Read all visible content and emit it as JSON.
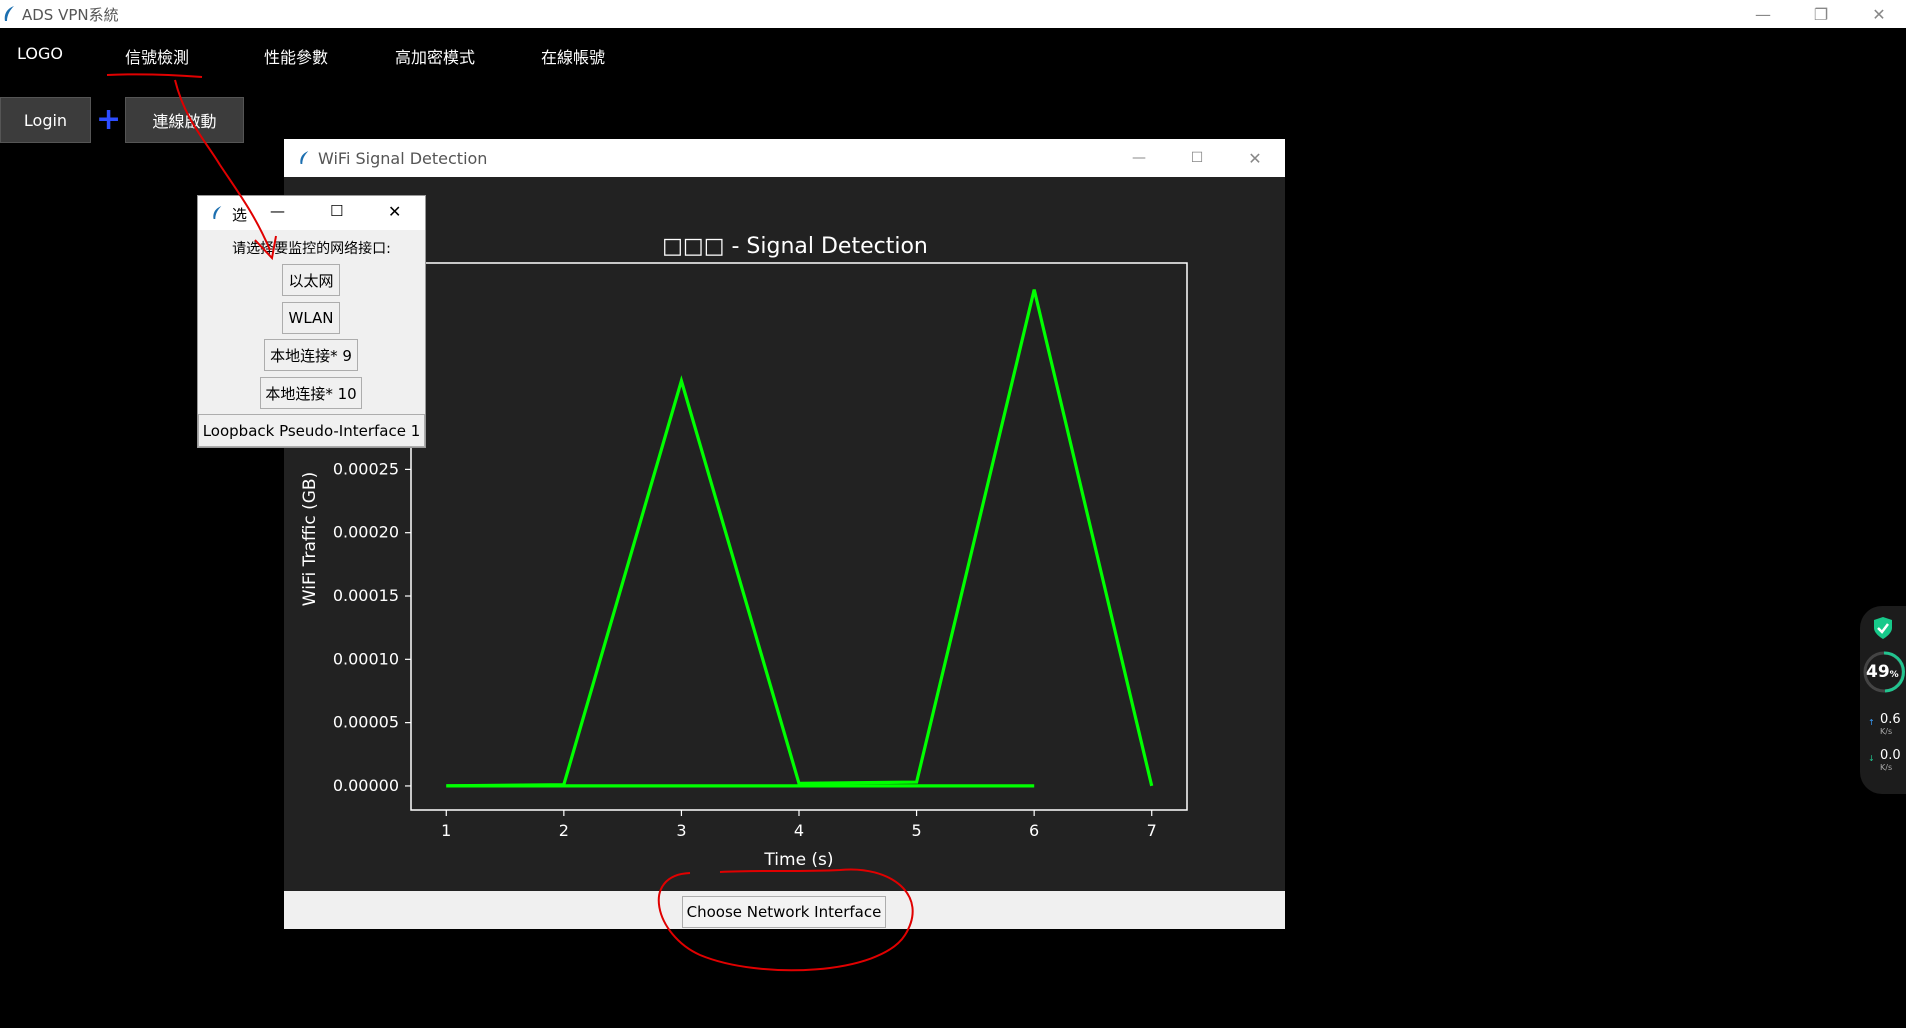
{
  "window": {
    "title": "ADS VPN系統",
    "minimize": "—",
    "restore": "❐",
    "close": "✕"
  },
  "menu": {
    "items": [
      "LOGO",
      "信號檢測",
      "性能參數",
      "高加密模式",
      "在線帳號"
    ]
  },
  "toolbar": {
    "login_label": "Login",
    "plus_label": "+",
    "connect_label": "連線啟動"
  },
  "wifi_window": {
    "title": "WiFi Signal Detection",
    "choose_button": "Choose Network Interface"
  },
  "chart_data": {
    "type": "line",
    "title": "□□□ - Signal Detection",
    "xlabel": "Time (s)",
    "ylabel": "WiFi Traffic (GB)",
    "x_ticks": [
      "1",
      "2",
      "3",
      "4",
      "5",
      "6",
      "7"
    ],
    "y_ticks": [
      "0.00000",
      "0.00005",
      "0.00010",
      "0.00015",
      "0.00020",
      "0.00025"
    ],
    "xlim": [
      0.7,
      7.3
    ],
    "ylim": [
      -1.9e-05,
      0.000413
    ],
    "series": [
      {
        "x": [
          1,
          2,
          3,
          4,
          5,
          6,
          7
        ],
        "values": [
          0,
          1e-06,
          0.00032,
          2e-06,
          3e-06,
          0.000392,
          0
        ],
        "color": "#00ff00"
      },
      {
        "x": [
          1,
          2,
          3,
          4,
          5,
          6
        ],
        "values": [
          0,
          0,
          0,
          0,
          0,
          0
        ],
        "color": "#00ff00"
      }
    ]
  },
  "dialog": {
    "title": "选",
    "prompt": "请选择要监控的网络接口:",
    "options": [
      "以太网",
      "WLAN",
      "本地连接* 9",
      "本地连接* 10",
      "Loopback Pseudo-Interface 1"
    ]
  },
  "side_widget": {
    "percent": "49",
    "percent_unit": "%",
    "upload": "0.6",
    "upload_unit": "K/s",
    "download": "0.0",
    "download_unit": "K/s"
  },
  "colors": {
    "line": "#00ff00",
    "annotation": "#e00000",
    "plot_bg": "#222222"
  }
}
